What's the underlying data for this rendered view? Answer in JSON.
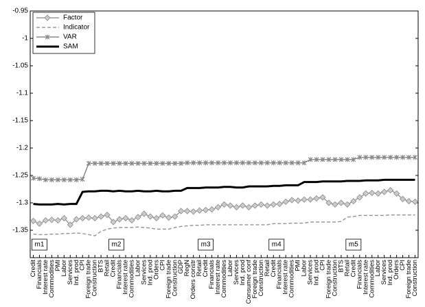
{
  "chart_data": {
    "type": "line",
    "categories": [
      "Credit",
      "Financials",
      "Interest rate",
      "Commodities",
      "PMI",
      "Labor",
      "Services",
      "Ind. prod",
      "CPI",
      "Foreign trade",
      "Construction",
      "BTS",
      "Retail",
      "Credit",
      "Financials",
      "Interest rate",
      "Commodities",
      "Labor",
      "Services",
      "Ind. prod",
      "Orders",
      "CPI",
      "Foreign trade",
      "Construction",
      "GDP",
      "RegN",
      "Orders constr",
      "Retail",
      "Credit",
      "Financials",
      "Interest rate",
      "Commodities",
      "Labor",
      "Services",
      "Ind. prod",
      "Consumer conf",
      "Foreign trade",
      "Construction",
      "Retail",
      "Credit",
      "Financials",
      "Interest rate",
      "Commodities",
      "PMI",
      "Labor",
      "Services",
      "Ind. prod",
      "CPI",
      "Foreign trade",
      "Construction",
      "BTS",
      "Retail",
      "Credit",
      "Financials",
      "Interest rate",
      "Commodities",
      "Labor",
      "Services",
      "Ind. prod",
      "Orders",
      "CPI",
      "Foreign trade",
      "Construction"
    ],
    "series": [
      {
        "name": "Factor",
        "color": "#999999",
        "dash": "solid",
        "marker": "diamond",
        "width": 1.5,
        "values": [
          -1.333,
          -1.338,
          -1.332,
          -1.331,
          -1.332,
          -1.328,
          -1.34,
          -1.33,
          -1.328,
          -1.327,
          -1.328,
          -1.325,
          -1.322,
          -1.335,
          -1.33,
          -1.328,
          -1.332,
          -1.326,
          -1.32,
          -1.325,
          -1.328,
          -1.323,
          -1.327,
          -1.325,
          -1.315,
          -1.315,
          -1.316,
          -1.314,
          -1.313,
          -1.312,
          -1.308,
          -1.303,
          -1.305,
          -1.308,
          -1.305,
          -1.308,
          -1.305,
          -1.303,
          -1.305,
          -1.303,
          -1.302,
          -1.298,
          -1.295,
          -1.296,
          -1.294,
          -1.294,
          -1.292,
          -1.29,
          -1.3,
          -1.303,
          -1.3,
          -1.303,
          -1.297,
          -1.29,
          -1.283,
          -1.282,
          -1.283,
          -1.28,
          -1.277,
          -1.283,
          -1.293,
          -1.297,
          -1.298
        ]
      },
      {
        "name": "Indicator",
        "color": "#999999",
        "dash": "dashed",
        "marker": "none",
        "width": 1.5,
        "values": [
          -1.357,
          -1.358,
          -1.358,
          -1.357,
          -1.357,
          -1.356,
          -1.356,
          -1.355,
          -1.356,
          -1.358,
          -1.36,
          -1.352,
          -1.348,
          -1.346,
          -1.345,
          -1.345,
          -1.345,
          -1.344,
          -1.345,
          -1.346,
          -1.348,
          -1.348,
          -1.348,
          -1.345,
          -1.343,
          -1.342,
          -1.341,
          -1.341,
          -1.34,
          -1.34,
          -1.34,
          -1.34,
          -1.34,
          -1.34,
          -1.34,
          -1.34,
          -1.34,
          -1.34,
          -1.34,
          -1.338,
          -1.338,
          -1.338,
          -1.337,
          -1.337,
          -1.337,
          -1.335,
          -1.335,
          -1.335,
          -1.335,
          -1.335,
          -1.334,
          -1.326,
          -1.325,
          -1.323,
          -1.323,
          -1.323,
          -1.323,
          -1.323,
          -1.322,
          -1.322,
          -1.322,
          -1.322,
          -1.322
        ]
      },
      {
        "name": "VAR",
        "color": "#888888",
        "dash": "solid",
        "marker": "x",
        "width": 1.5,
        "values": [
          -1.255,
          -1.256,
          -1.258,
          -1.258,
          -1.258,
          -1.258,
          -1.258,
          -1.258,
          -1.257,
          -1.228,
          -1.228,
          -1.228,
          -1.228,
          -1.228,
          -1.228,
          -1.228,
          -1.228,
          -1.228,
          -1.228,
          -1.228,
          -1.228,
          -1.228,
          -1.228,
          -1.228,
          -1.228,
          -1.227,
          -1.227,
          -1.227,
          -1.227,
          -1.227,
          -1.227,
          -1.227,
          -1.227,
          -1.227,
          -1.227,
          -1.227,
          -1.227,
          -1.227,
          -1.227,
          -1.227,
          -1.227,
          -1.227,
          -1.227,
          -1.227,
          -1.227,
          -1.221,
          -1.221,
          -1.221,
          -1.221,
          -1.221,
          -1.221,
          -1.221,
          -1.221,
          -1.217,
          -1.217,
          -1.217,
          -1.217,
          -1.217,
          -1.217,
          -1.217,
          -1.217,
          -1.217,
          -1.217
        ]
      },
      {
        "name": "SAM",
        "color": "#000000",
        "dash": "solid",
        "marker": "none",
        "width": 3,
        "values": [
          -1.302,
          -1.303,
          -1.303,
          -1.303,
          -1.302,
          -1.303,
          -1.302,
          -1.302,
          -1.28,
          -1.279,
          -1.279,
          -1.278,
          -1.278,
          -1.279,
          -1.278,
          -1.279,
          -1.279,
          -1.278,
          -1.279,
          -1.279,
          -1.278,
          -1.279,
          -1.279,
          -1.278,
          -1.278,
          -1.273,
          -1.273,
          -1.273,
          -1.272,
          -1.272,
          -1.272,
          -1.271,
          -1.271,
          -1.272,
          -1.272,
          -1.27,
          -1.27,
          -1.27,
          -1.27,
          -1.269,
          -1.269,
          -1.268,
          -1.268,
          -1.268,
          -1.262,
          -1.262,
          -1.262,
          -1.261,
          -1.261,
          -1.261,
          -1.261,
          -1.26,
          -1.26,
          -1.26,
          -1.259,
          -1.259,
          -1.259,
          -1.258,
          -1.258,
          -1.258,
          -1.258,
          -1.258,
          -1.258
        ]
      }
    ],
    "annotations": [
      "m1",
      "m2",
      "m3",
      "m4",
      "m5"
    ],
    "ylim": [
      -1.4,
      -0.95
    ],
    "yticks": [
      -0.95,
      -1,
      -1.05,
      -1.1,
      -1.15,
      -1.2,
      -1.25,
      -1.3,
      -1.35
    ],
    "legend": "upper-left"
  }
}
